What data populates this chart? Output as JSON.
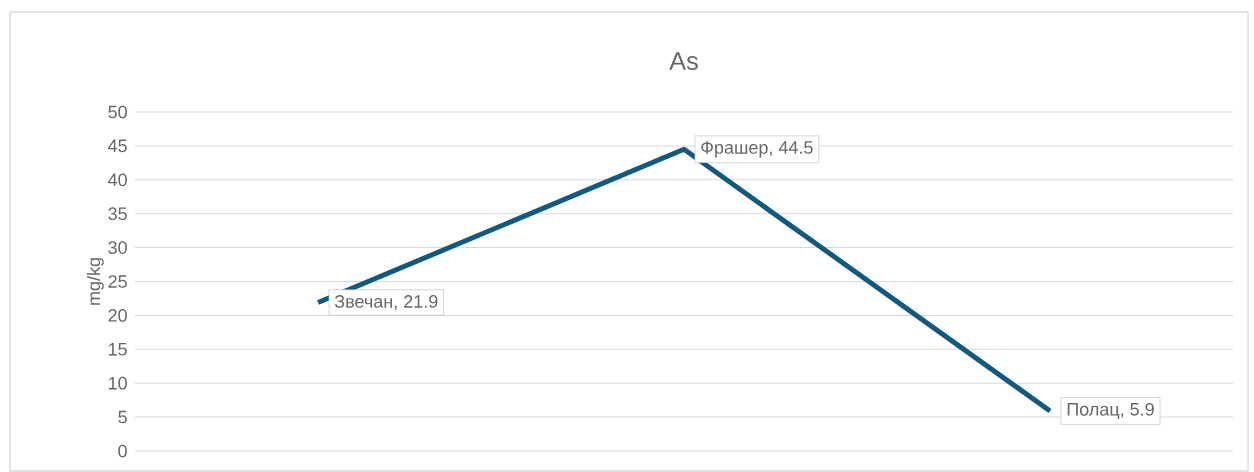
{
  "chart_data": {
    "type": "line",
    "title": "As",
    "ylabel": "mg/kg",
    "categories": [
      null,
      null,
      null
    ],
    "series": [
      {
        "color": "#0f5a7e",
        "values": [
          21.9,
          44.5,
          5.9
        ],
        "value_labels": [
          "Звечан, 21.9",
          "Фрашер, 44.5",
          "Полац, 5.9"
        ]
      }
    ],
    "ylim": [
      0,
      50
    ],
    "yticks": [
      0,
      5,
      10,
      15,
      20,
      25,
      30,
      35,
      40,
      45,
      50
    ],
    "grid": "y",
    "marker": "none",
    "line_style": "solid"
  }
}
